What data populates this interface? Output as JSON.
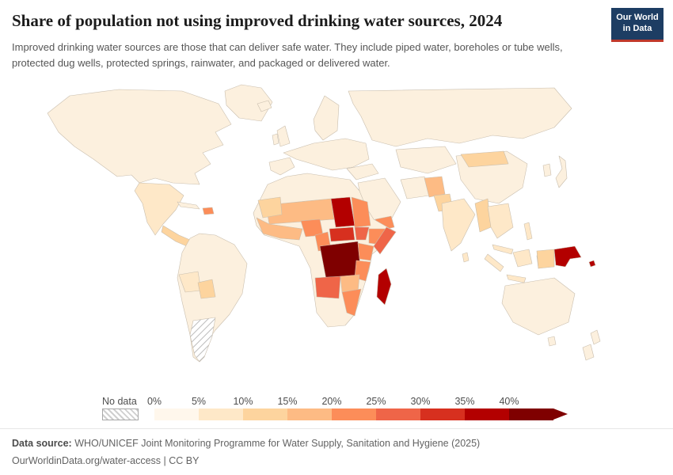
{
  "logo": {
    "text_line1": "Our World",
    "text_line2": "in Data",
    "bg_color": "#1d3d63",
    "accent_color": "#c0392b"
  },
  "header": {
    "title": "Share of population not using improved drinking water sources, 2024",
    "subtitle": "Improved drinking water sources are those that can deliver safe water. They include piped water, boreholes or tube wells, protected dug wells, protected springs, rainwater, and packaged or delivered water."
  },
  "legend": {
    "no_data_label": "No data",
    "ticks": [
      "0%",
      "5%",
      "10%",
      "15%",
      "20%",
      "25%",
      "30%",
      "35%",
      "40%"
    ],
    "colors": [
      "#fff7ec",
      "#fee8c8",
      "#fdd49e",
      "#fdbb84",
      "#fc8d59",
      "#ef6548",
      "#d7301f",
      "#b30000",
      "#7f0000"
    ],
    "arrow_color": "#7f0000"
  },
  "footer": {
    "source_label": "Data source:",
    "source_text": " WHO/UNICEF Joint Monitoring Programme for Water Supply, Sanitation and Hygiene (2025)",
    "license_text": "OurWorldinData.org/water-access | CC BY"
  },
  "map": {
    "fills": {
      "base": "#fcf0de",
      "bin2": "#fee8c8",
      "bin3": "#fdd49e",
      "bin4": "#fdbb84",
      "bin5": "#fc8d59",
      "bin6": "#ef6548",
      "bin7": "#d7301f",
      "bin8": "#b30000",
      "bin9": "#7f0000"
    }
  },
  "chart_data": {
    "type": "choropleth",
    "title": "Share of population not using improved drinking water sources",
    "year": 2024,
    "unit": "share of population (%)",
    "legend_bins": [
      {
        "range": "0-5%",
        "color": "#fff7ec"
      },
      {
        "range": "5-10%",
        "color": "#fee8c8"
      },
      {
        "range": "10-15%",
        "color": "#fdd49e"
      },
      {
        "range": "15-20%",
        "color": "#fdbb84"
      },
      {
        "range": "20-25%",
        "color": "#fc8d59"
      },
      {
        "range": "25-30%",
        "color": "#ef6548"
      },
      {
        "range": "30-35%",
        "color": "#d7301f"
      },
      {
        "range": "35-40%",
        "color": "#b30000"
      },
      {
        "range": "40%+",
        "color": "#7f0000"
      }
    ],
    "no_data_style": "hatched",
    "no_data_countries_visible": [
      "Argentina"
    ],
    "region_value_estimates": {
      "DR Congo": "40%+",
      "Chad": "35-40%",
      "Madagascar": "35-40%",
      "Papua New Guinea": "35-40%",
      "Central African Republic": "30-35%",
      "Somalia": "25-30%",
      "South Sudan": "25-30%",
      "Angola": "25-30%",
      "Ethiopia": "20-25%",
      "Sudan": "20-25%",
      "Kenya": "20-25%",
      "Tanzania": "20-25%",
      "Mozambique": "20-25%",
      "Nigeria": "20-25%",
      "Cameroon": "20-25%",
      "Haiti": "20-25%",
      "Yemen": "20-25%",
      "Mali": "15-20%",
      "Niger": "15-20%",
      "Burkina Faso": "15-20%",
      "Guinea": "15-20%",
      "Zambia": "15-20%",
      "Afghanistan": "15-20%",
      "Mauritania": "10-15%",
      "Mongolia": "10-15%",
      "Myanmar": "10-15%",
      "Pakistan": "10-15%",
      "Bolivia": "10-15%",
      "Central America": "10-15%",
      "Indonesia": "5-10%",
      "India": "5-10%",
      "Mexico": "5-10%",
      "Europe / North America / East Asia / Australia": "0-5%",
      "Argentina": "No data"
    }
  }
}
